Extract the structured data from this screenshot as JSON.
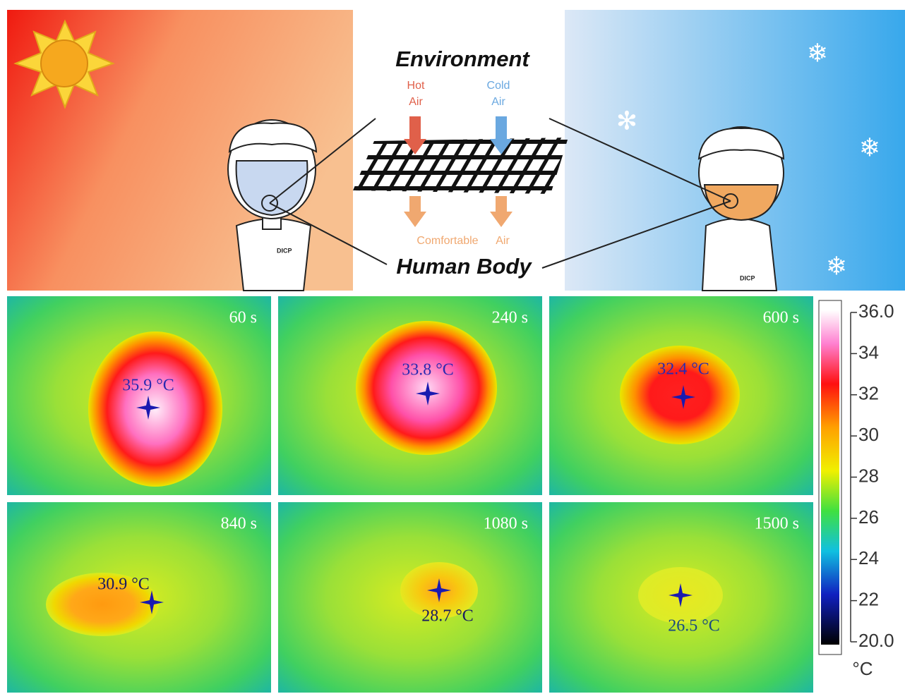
{
  "top": {
    "title": "Environment",
    "hot_air": [
      "Hot",
      "Air"
    ],
    "cold_air": [
      "Cold",
      "Air"
    ],
    "comfortable": "Comfortable",
    "air": "Air",
    "bottom_label": "Human Body",
    "shirt_text": "DICP"
  },
  "panels": [
    {
      "time": "60 s",
      "temp": "35.9 °C"
    },
    {
      "time": "240 s",
      "temp": "33.8 °C"
    },
    {
      "time": "600 s",
      "temp": "32.4 °C"
    },
    {
      "time": "840 s",
      "temp": "30.9 °C"
    },
    {
      "time": "1080 s",
      "temp": "28.7 °C"
    },
    {
      "time": "1500 s",
      "temp": "26.5 °C"
    }
  ],
  "colorbar": {
    "ticks": [
      "36.0",
      "34",
      "32",
      "30",
      "28",
      "26",
      "24",
      "22",
      "20.0"
    ],
    "unit": "°C"
  }
}
